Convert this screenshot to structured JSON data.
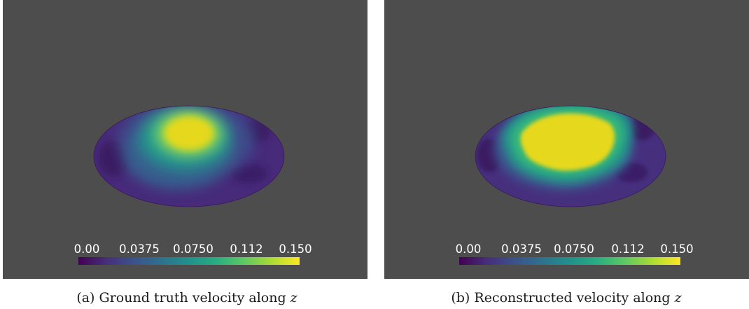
{
  "colors": {
    "background": "#4d4d4d",
    "colormap": "viridis",
    "text": "#ffffff"
  },
  "panels": [
    {
      "id": "a",
      "colorbar": {
        "ticks": [
          "0.00",
          "0.0375",
          "0.0750",
          "0.112",
          "0.150"
        ],
        "range": [
          0.0,
          0.15
        ]
      },
      "caption": {
        "label": "(a)",
        "text": "Ground truth velocity along",
        "variable": "z"
      }
    },
    {
      "id": "b",
      "colorbar": {
        "ticks": [
          "0.00",
          "0.0375",
          "0.0750",
          "0.112",
          "0.150"
        ],
        "range": [
          0.0,
          0.15
        ]
      },
      "caption": {
        "label": "(b)",
        "text": "Reconstructed velocity along",
        "variable": "z"
      }
    }
  ]
}
